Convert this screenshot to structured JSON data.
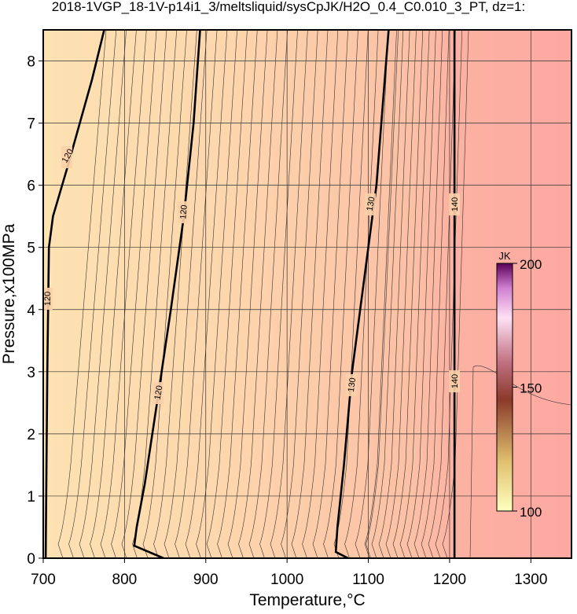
{
  "chart_data": {
    "type": "contour",
    "title": "2018-1VGP_18-1V-p14i1_3/meltsliquid/sysCpJK/H2O_0.4_C0.010_3_PT, dz=1:",
    "xlabel": "Temperature,°C",
    "ylabel": "Pressure,x100MPa",
    "xlim": [
      700,
      1350
    ],
    "ylim": [
      0,
      8.5
    ],
    "xticks": [
      700,
      800,
      900,
      1000,
      1100,
      1200,
      1300
    ],
    "yticks": [
      0,
      1,
      2,
      3,
      4,
      5,
      6,
      7,
      8
    ],
    "grid": true,
    "contours": [
      {
        "level": 120,
        "x": [
          703,
          705,
          707,
          712,
          730,
          760,
          775
        ],
        "y": [
          0,
          3,
          5,
          5.5,
          6.3,
          7.7,
          8.5
        ]
      },
      {
        "level": 120,
        "x": [
          848,
          812,
          815,
          825,
          840,
          857,
          873,
          885,
          893
        ],
        "y": [
          0,
          0.2,
          0.5,
          1.2,
          2.5,
          4,
          5.5,
          7,
          8.5
        ]
      },
      {
        "level": 130,
        "x": [
          1075,
          1060,
          1062,
          1070,
          1080,
          1095,
          1110,
          1125
        ],
        "y": [
          0,
          0.1,
          0.5,
          1.5,
          3,
          4.5,
          6,
          8.5
        ]
      },
      {
        "level": 140,
        "x": [
          1206,
          1206
        ],
        "y": [
          0,
          8.5
        ]
      }
    ],
    "colorbar": {
      "label": "JK",
      "lim": [
        100,
        200
      ],
      "ticks": [
        100,
        150,
        200
      ]
    }
  }
}
